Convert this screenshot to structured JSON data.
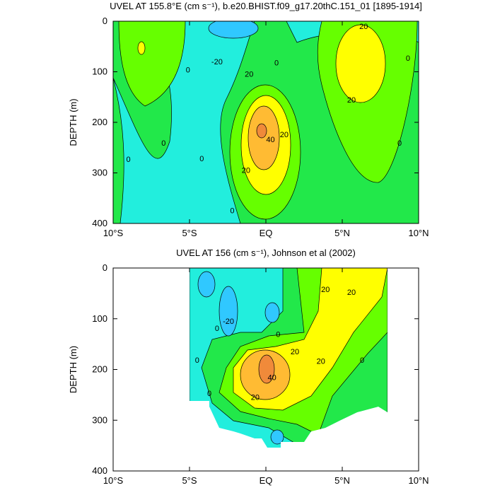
{
  "chart_data": [
    {
      "type": "contour",
      "title": "UVEL AT 155.8°E (cm s⁻¹), b.e20.BHIST.f09_g17.20thC.151_01 [1895-1914]",
      "ylabel": "DEPTH (m)",
      "xlim": [
        -10,
        10
      ],
      "xticks": [
        {
          "value": -10,
          "label": "10°S"
        },
        {
          "value": -5,
          "label": "5°S"
        },
        {
          "value": 0,
          "label": "EQ"
        },
        {
          "value": 5,
          "label": "5°N"
        },
        {
          "value": 10,
          "label": "10°N"
        }
      ],
      "ylim": [
        400,
        0
      ],
      "yticks": [
        0,
        100,
        200,
        300,
        400
      ],
      "fill_colors": [
        "#30c8ff",
        "#22eedd",
        "#22e84a",
        "#66ff00",
        "#ffff00",
        "#ffbb33",
        "#f08a3a"
      ],
      "contour_labels": [
        {
          "x": 6.4,
          "y": 11,
          "value": 20
        },
        {
          "x": 5.6,
          "y": 157,
          "value": 20
        },
        {
          "x": -5.1,
          "y": 97,
          "value": 0
        },
        {
          "x": -3.2,
          "y": 81,
          "value": -20
        },
        {
          "x": -1.1,
          "y": 106,
          "value": 20
        },
        {
          "x": 0.7,
          "y": 83,
          "value": 0
        },
        {
          "x": 9.3,
          "y": 74,
          "value": 0
        },
        {
          "x": -6.7,
          "y": 242,
          "value": 0
        },
        {
          "x": -9.0,
          "y": 274,
          "value": 0
        },
        {
          "x": -4.2,
          "y": 273,
          "value": 0
        },
        {
          "x": 0.3,
          "y": 235,
          "value": 40
        },
        {
          "x": 1.2,
          "y": 225,
          "value": 20
        },
        {
          "x": -1.3,
          "y": 296,
          "value": 20
        },
        {
          "x": -2.2,
          "y": 376,
          "value": 0
        },
        {
          "x": 8.75,
          "y": 242,
          "value": 0
        }
      ]
    },
    {
      "type": "contour",
      "title": "UVEL AT 156 (cm s⁻¹), Johnson et al (2002)",
      "ylabel": "DEPTH (m)",
      "xlim": [
        -10,
        10
      ],
      "xticks": [
        {
          "value": -10,
          "label": "10°S"
        },
        {
          "value": -5,
          "label": "5°S"
        },
        {
          "value": 0,
          "label": "EQ"
        },
        {
          "value": 5,
          "label": "5°N"
        },
        {
          "value": 10,
          "label": "10°N"
        }
      ],
      "ylim": [
        400,
        0
      ],
      "yticks": [
        0,
        100,
        200,
        300,
        400
      ],
      "fill_colors": [
        "#30c8ff",
        "#22eedd",
        "#22e84a",
        "#66ff00",
        "#ffff00",
        "#ffbb33",
        "#f08a3a"
      ],
      "contour_labels": [
        {
          "x": -2.45,
          "y": 106,
          "value": -20
        },
        {
          "x": -3.2,
          "y": 120,
          "value": 0
        },
        {
          "x": 0.8,
          "y": 132,
          "value": 0
        },
        {
          "x": 3.9,
          "y": 43,
          "value": 20
        },
        {
          "x": 5.6,
          "y": 49,
          "value": 20
        },
        {
          "x": 1.9,
          "y": 166,
          "value": 20
        },
        {
          "x": 3.6,
          "y": 185,
          "value": 20
        },
        {
          "x": 6.3,
          "y": 183,
          "value": 0
        },
        {
          "x": 0.4,
          "y": 217,
          "value": 40
        },
        {
          "x": -0.7,
          "y": 256,
          "value": 20
        },
        {
          "x": -3.7,
          "y": 248,
          "value": 0
        },
        {
          "x": -4.5,
          "y": 183,
          "value": 0
        }
      ]
    }
  ]
}
